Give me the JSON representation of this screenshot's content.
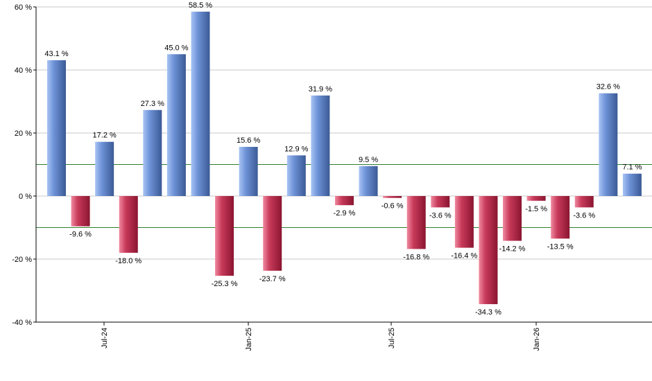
{
  "chart_data": {
    "type": "bar",
    "ylim": [
      -40,
      60
    ],
    "yticks": [
      -40,
      -20,
      0,
      20,
      40,
      60
    ],
    "ytick_labels": [
      "-40 %",
      "-20 %",
      "0 %",
      "20 %",
      "40 %",
      "60 %"
    ],
    "xtick_labels": [
      "Jul-24",
      "Jan-25",
      "Jul-25",
      "Jan-26"
    ],
    "grid": true,
    "reference_lines": [
      10,
      -10
    ],
    "values": [
      43.1,
      -9.6,
      17.2,
      -18.0,
      27.3,
      45.0,
      58.5,
      -25.3,
      15.6,
      -23.7,
      12.9,
      31.9,
      -2.9,
      9.5,
      -0.6,
      -16.8,
      -3.6,
      -16.4,
      -34.3,
      -14.2,
      -1.5,
      -13.5,
      -3.6,
      32.6,
      7.1
    ],
    "labels": [
      "43.1 %",
      "-9.6 %",
      "17.2 %",
      "-18.0 %",
      "27.3 %",
      "45.0 %",
      "58.5 %",
      "-25.3 %",
      "15.6 %",
      "-23.7 %",
      "12.9 %",
      "31.9 %",
      "-2.9 %",
      "9.5 %",
      "-0.6 %",
      "-16.8 %",
      "-3.6 %",
      "-16.4 %",
      "-34.3 %",
      "-14.2 %",
      "-1.5 %",
      "-13.5 %",
      "-3.6 %",
      "32.6 %",
      "7.1 %"
    ],
    "colors": {
      "positive_light": "#a8c4f5",
      "positive_mid": "#6f93d8",
      "positive_dark": "#3a5a95",
      "negative_light": "#f08aa0",
      "negative_mid": "#c83a5a",
      "negative_dark": "#8a1530",
      "reference_line": "#2e7d2e",
      "grid": "#c8c8c8",
      "axis": "#000000"
    }
  }
}
